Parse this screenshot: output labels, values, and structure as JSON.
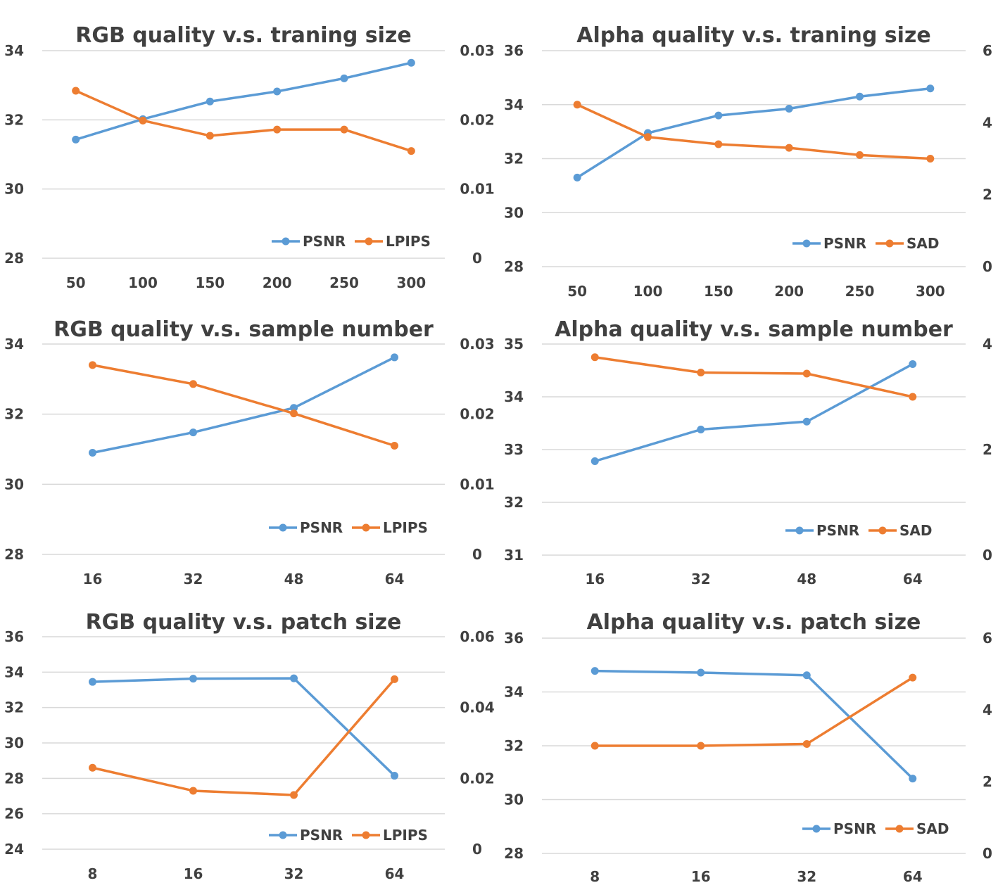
{
  "colors": {
    "psnr": "#5b9bd5",
    "second": "#ed7d31",
    "grid": "#d9d9d9",
    "text": "#404040"
  },
  "chart_data": [
    {
      "type": "line",
      "title": "RGB quality v.s. traning size",
      "categories": [
        "50",
        "100",
        "150",
        "200",
        "250",
        "300"
      ],
      "ylim": [
        28,
        34
      ],
      "yticks": [
        "28",
        "30",
        "32",
        "34"
      ],
      "y2lim": [
        0,
        0.03
      ],
      "y2ticks": [
        "0",
        "0.01",
        "0.02",
        "0.03"
      ],
      "series": [
        {
          "name": "PSNR",
          "axis": "left",
          "values": [
            31.43,
            32.02,
            32.53,
            32.82,
            33.2,
            33.65
          ]
        },
        {
          "name": "LPIPS",
          "axis": "right",
          "values": [
            0.0242,
            0.0199,
            0.0177,
            0.0186,
            0.0186,
            0.0155
          ]
        }
      ],
      "legend": "bottom-right",
      "grid": true
    },
    {
      "type": "line",
      "title": "Alpha quality v.s. traning size",
      "categories": [
        "50",
        "100",
        "150",
        "200",
        "250",
        "300"
      ],
      "ylim": [
        28,
        36
      ],
      "yticks": [
        "28",
        "30",
        "32",
        "34",
        "36"
      ],
      "y2lim": [
        0,
        6
      ],
      "y2ticks": [
        "0",
        "2",
        "4",
        "6"
      ],
      "series": [
        {
          "name": "PSNR",
          "axis": "left",
          "values": [
            31.3,
            32.95,
            33.6,
            33.85,
            34.3,
            34.6
          ]
        },
        {
          "name": "SAD",
          "axis": "right",
          "values": [
            4.5,
            3.6,
            3.4,
            3.3,
            3.1,
            3.0
          ]
        }
      ],
      "legend": "bottom-right",
      "grid": true
    },
    {
      "type": "line",
      "title": "RGB quality v.s. sample number",
      "categories": [
        "16",
        "32",
        "48",
        "64"
      ],
      "ylim": [
        28,
        34
      ],
      "yticks": [
        "28",
        "30",
        "32",
        "34"
      ],
      "y2lim": [
        0,
        0.03
      ],
      "y2ticks": [
        "0",
        "0.01",
        "0.02",
        "0.03"
      ],
      "series": [
        {
          "name": "PSNR",
          "axis": "left",
          "values": [
            30.9,
            31.48,
            32.18,
            33.62
          ]
        },
        {
          "name": "LPIPS",
          "axis": "right",
          "values": [
            0.027,
            0.0243,
            0.0201,
            0.0155
          ]
        }
      ],
      "legend": "bottom-right",
      "grid": true
    },
    {
      "type": "line",
      "title": "Alpha quality v.s. sample number",
      "categories": [
        "16",
        "32",
        "48",
        "64"
      ],
      "ylim": [
        31,
        35
      ],
      "yticks": [
        "31",
        "32",
        "33",
        "34",
        "35"
      ],
      "y2lim": [
        0,
        4
      ],
      "y2ticks": [
        "0",
        "2",
        "4"
      ],
      "series": [
        {
          "name": "PSNR",
          "axis": "left",
          "values": [
            32.78,
            33.38,
            33.53,
            34.62
          ]
        },
        {
          "name": "SAD",
          "axis": "right",
          "values": [
            3.75,
            3.46,
            3.44,
            3.0
          ]
        }
      ],
      "legend": "bottom-right",
      "grid": true
    },
    {
      "type": "line",
      "title": "RGB quality v.s. patch size",
      "categories": [
        "8",
        "16",
        "32",
        "64"
      ],
      "ylim": [
        24,
        36
      ],
      "yticks": [
        "24",
        "26",
        "28",
        "30",
        "32",
        "34",
        "36"
      ],
      "y2lim": [
        0,
        0.06
      ],
      "y2ticks": [
        "0",
        "0.02",
        "0.04",
        "0.06"
      ],
      "series": [
        {
          "name": "PSNR",
          "axis": "left",
          "values": [
            33.45,
            33.63,
            33.65,
            28.15
          ]
        },
        {
          "name": "LPIPS",
          "axis": "right",
          "values": [
            0.023,
            0.0165,
            0.0153,
            0.048
          ]
        }
      ],
      "legend": "bottom-right",
      "grid": true
    },
    {
      "type": "line",
      "title": "Alpha quality v.s. patch size",
      "categories": [
        "8",
        "16",
        "32",
        "64"
      ],
      "ylim": [
        28,
        36
      ],
      "yticks": [
        "28",
        "30",
        "32",
        "34",
        "36"
      ],
      "y2lim": [
        0,
        6
      ],
      "y2ticks": [
        "0",
        "2",
        "4",
        "6"
      ],
      "series": [
        {
          "name": "PSNR",
          "axis": "left",
          "values": [
            34.78,
            34.72,
            34.62,
            30.78
          ]
        },
        {
          "name": "SAD",
          "axis": "right",
          "values": [
            3.0,
            3.0,
            3.05,
            4.9
          ]
        }
      ],
      "legend": "bottom-right",
      "grid": true
    }
  ]
}
